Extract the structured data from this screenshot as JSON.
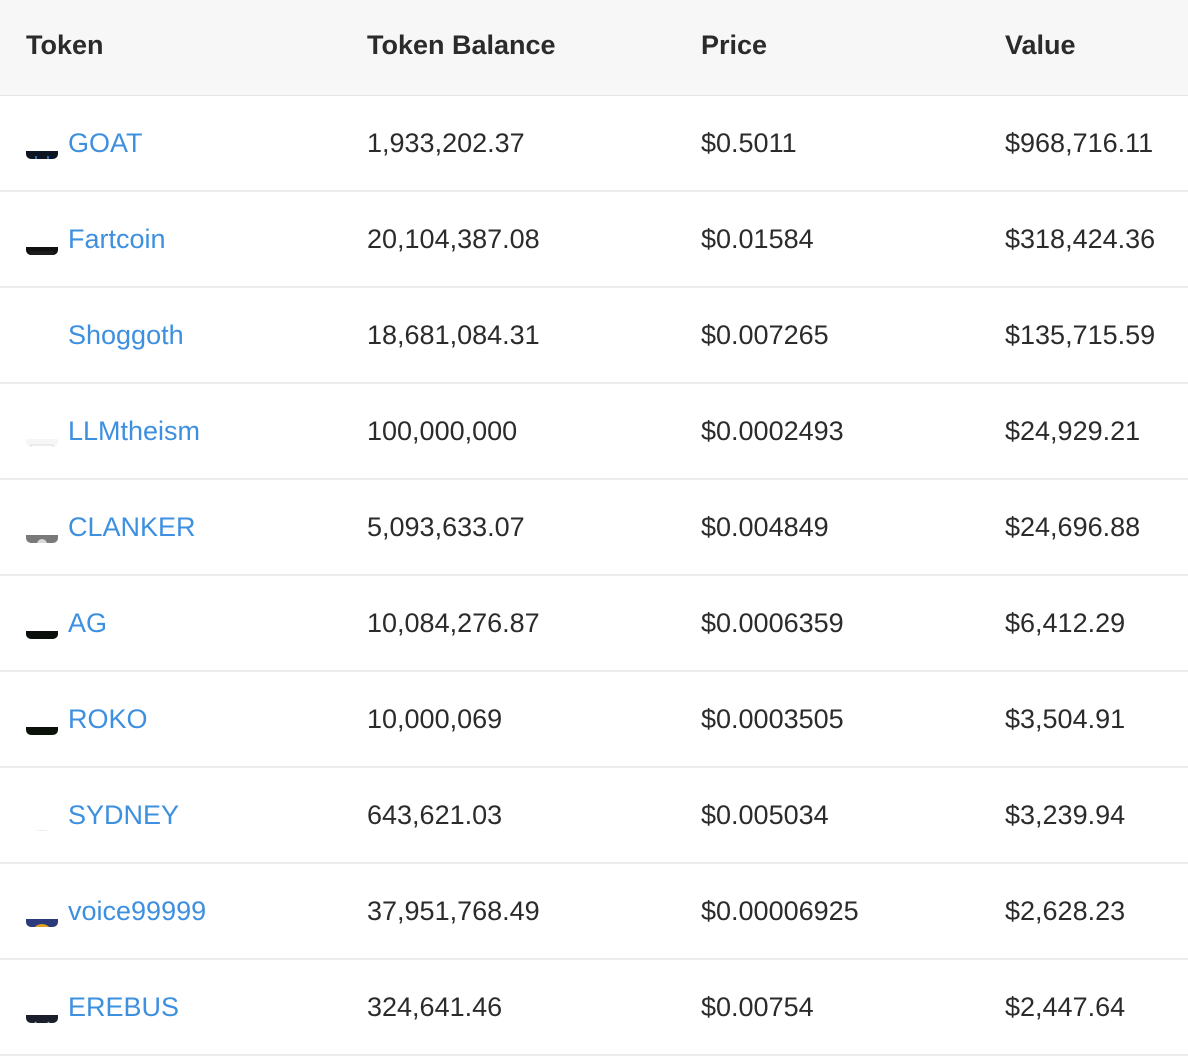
{
  "headers": {
    "token": "Token",
    "balance": "Token Balance",
    "price": "Price",
    "value": "Value"
  },
  "rows": [
    {
      "name": "GOAT",
      "balance": "1,933,202.37",
      "price": "$0.5011",
      "value": "$968,716.11",
      "icon": "goat-icon"
    },
    {
      "name": "Fartcoin",
      "balance": "20,104,387.08",
      "price": "$0.01584",
      "value": "$318,424.36",
      "icon": "fartcoin-icon"
    },
    {
      "name": "Shoggoth",
      "balance": "18,681,084.31",
      "price": "$0.007265",
      "value": "$135,715.59",
      "icon": "shoggoth-icon"
    },
    {
      "name": "LLMtheism",
      "balance": "100,000,000",
      "price": "$0.0002493",
      "value": "$24,929.21",
      "icon": "llmtheism-icon"
    },
    {
      "name": "CLANKER",
      "balance": "5,093,633.07",
      "price": "$0.004849",
      "value": "$24,696.88",
      "icon": "clanker-icon"
    },
    {
      "name": "AG",
      "balance": "10,084,276.87",
      "price": "$0.0006359",
      "value": "$6,412.29",
      "icon": "ag-icon"
    },
    {
      "name": "ROKO",
      "balance": "10,000,069",
      "price": "$0.0003505",
      "value": "$3,504.91",
      "icon": "roko-icon"
    },
    {
      "name": "SYDNEY",
      "balance": "643,621.03",
      "price": "$0.005034",
      "value": "$3,239.94",
      "icon": "sydney-icon"
    },
    {
      "name": "voice99999",
      "balance": "37,951,768.49",
      "price": "$0.00006925",
      "value": "$2,628.23",
      "icon": "voice99999-icon"
    },
    {
      "name": "EREBUS",
      "balance": "324,641.46",
      "price": "$0.00754",
      "value": "$2,447.64",
      "icon": "erebus-icon"
    }
  ],
  "colors": {
    "link": "#3d8fe0",
    "text": "#2b2b2b",
    "header_bg": "#f7f7f7",
    "divider": "#ececec"
  }
}
